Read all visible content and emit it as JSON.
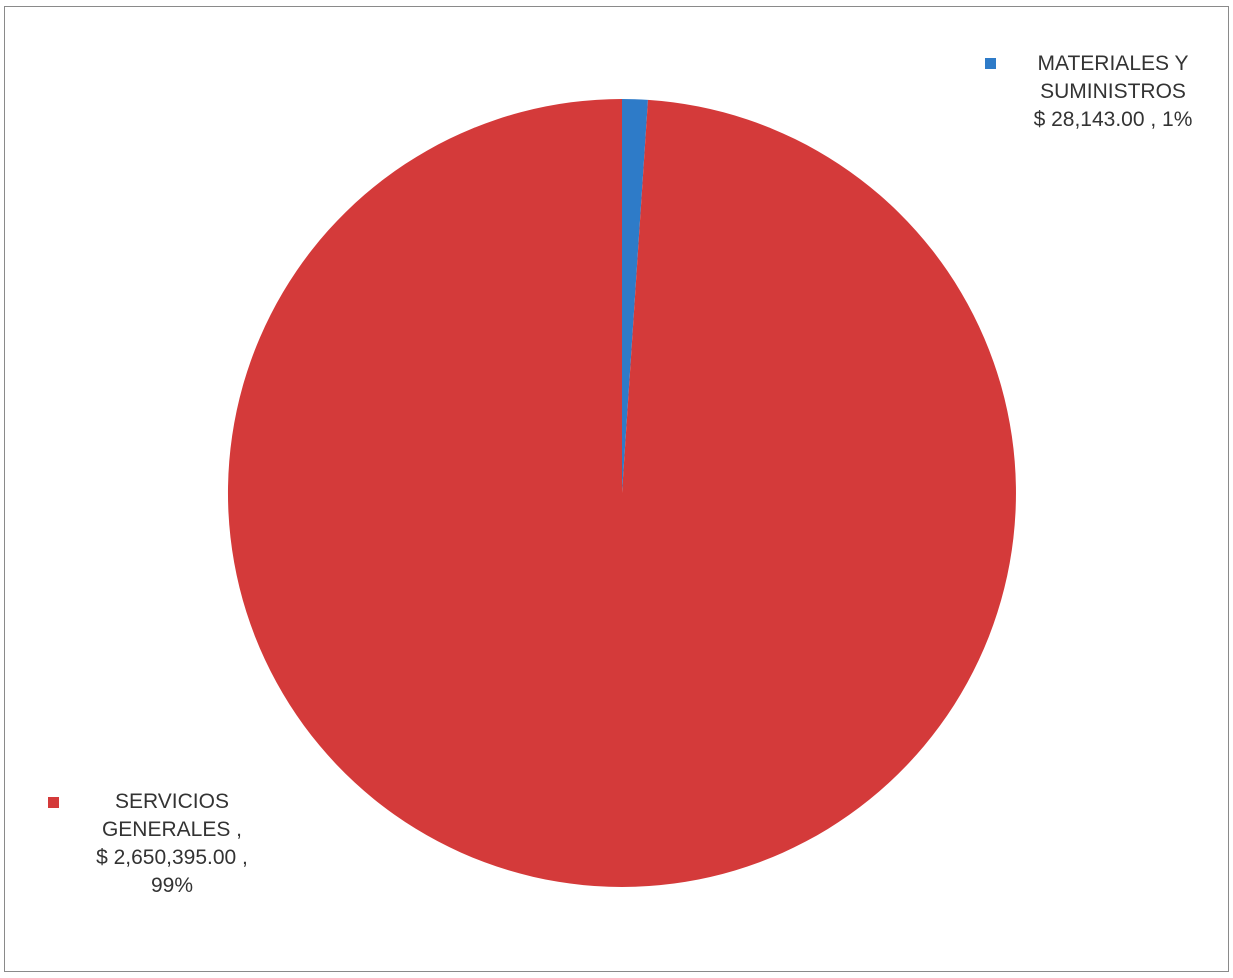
{
  "chart_data": {
    "type": "pie",
    "title": "",
    "slices": [
      {
        "name": "MATERIALES Y SUMINISTROS",
        "value": 28143.0,
        "percent": 1,
        "color": "#2e7bc8",
        "label_lines": [
          "MATERIALES Y",
          "SUMINISTROS",
          "$ 28,143.00 , 1%"
        ]
      },
      {
        "name": "SERVICIOS GENERALES",
        "value": 2650395.0,
        "percent": 99,
        "color": "#d43a3a",
        "label_lines": [
          "SERVICIOS",
          "GENERALES ,",
          "$ 2,650,395.00 ,",
          "99%"
        ]
      }
    ],
    "start_angle": "12 o'clock",
    "direction": "clockwise",
    "legend": "data labels outside pie with colored square keys",
    "grid": false
  }
}
